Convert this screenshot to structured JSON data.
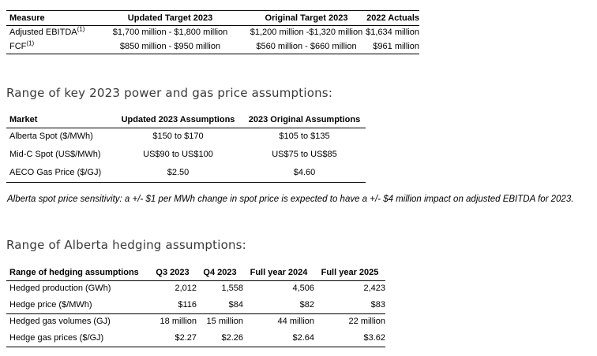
{
  "colors": {
    "background": "#ffffff",
    "text": "#000000",
    "heading": "#3a3a3a",
    "table_border": "#000000"
  },
  "headings": {
    "power_gas": "Range of key 2023 power and gas price assumptions:",
    "hedging": "Range of Alberta hedging assumptions:"
  },
  "note": "Alberta spot price sensitivity: a +/- $1 per MWh change in spot price is expected to have a +/- $4 million impact on adjusted EBITDA for 2023.",
  "tables": {
    "targets": {
      "headers": [
        "Measure",
        "Updated Target 2023",
        "Original Target 2023",
        "2022 Actuals"
      ],
      "rows": [
        [
          {
            "text": "Adjusted EBITDA",
            "sup": "(1)"
          },
          "$1,700 million - $1,800 million",
          "$1,200 million -$1,320 million",
          "$1,634 million"
        ],
        [
          {
            "text": "FCF",
            "sup": "(1)"
          },
          "$850 million - $950 million",
          "$560 million - $660 million",
          "$961 million"
        ]
      ]
    },
    "prices": {
      "headers": [
        "Market",
        "Updated 2023 Assumptions",
        "2023 Original Assumptions"
      ],
      "rows": [
        [
          "Alberta Spot ($/MWh)",
          "$150 to $170",
          "$105 to $135"
        ],
        [
          "Mid-C Spot (US$/MWh)",
          "US$90 to US$100",
          "US$75 to US$85"
        ],
        [
          "AECO Gas Price ($/GJ)",
          "$2.50",
          "$4.60"
        ]
      ]
    },
    "hedging": {
      "headers": [
        "Range of hedging assumptions",
        "Q3 2023",
        "Q4 2023",
        "Full year 2024",
        "Full year 2025"
      ],
      "row_groups": [
        [
          [
            "Hedged production (GWh)",
            "2,012",
            "1,558",
            "4,506",
            "2,423"
          ],
          [
            "Hedge price ($/MWh)",
            "$116",
            "$84",
            "$82",
            "$83"
          ]
        ],
        [
          [
            "Hedged gas volumes (GJ)",
            "18 million",
            "15 million",
            "44 million",
            "22 million"
          ],
          [
            "Hedge gas prices ($/GJ)",
            "$2.27",
            "$2.26",
            "$2.64",
            "$3.62"
          ]
        ]
      ]
    }
  }
}
